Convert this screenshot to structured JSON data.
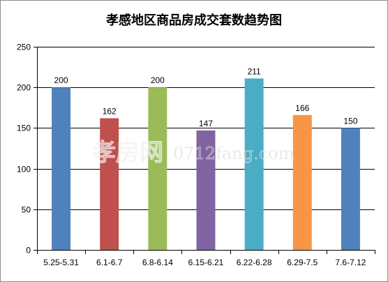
{
  "chart_data": {
    "type": "bar",
    "title": "孝感地区商品房成交套数趋势图",
    "categories": [
      "5.25-5.31",
      "6.1-6.7",
      "6.8-6.14",
      "6.15-6.21",
      "6.22-6.28",
      "6.29-7.5",
      "7.6-7.12"
    ],
    "values": [
      200,
      162,
      200,
      147,
      211,
      166,
      150
    ],
    "colors": [
      "#4f81bd",
      "#c0504d",
      "#9bbb59",
      "#8064a2",
      "#4bacc6",
      "#f79646",
      "#4f81bd"
    ],
    "ylim": [
      0,
      250
    ],
    "yticks": [
      0,
      50,
      100,
      150,
      200,
      250
    ],
    "grid": true,
    "legend": "none",
    "xlabel": "",
    "ylabel": ""
  },
  "watermark": {
    "logo_text": "孝房网",
    "url_text": "0712fang.com"
  }
}
